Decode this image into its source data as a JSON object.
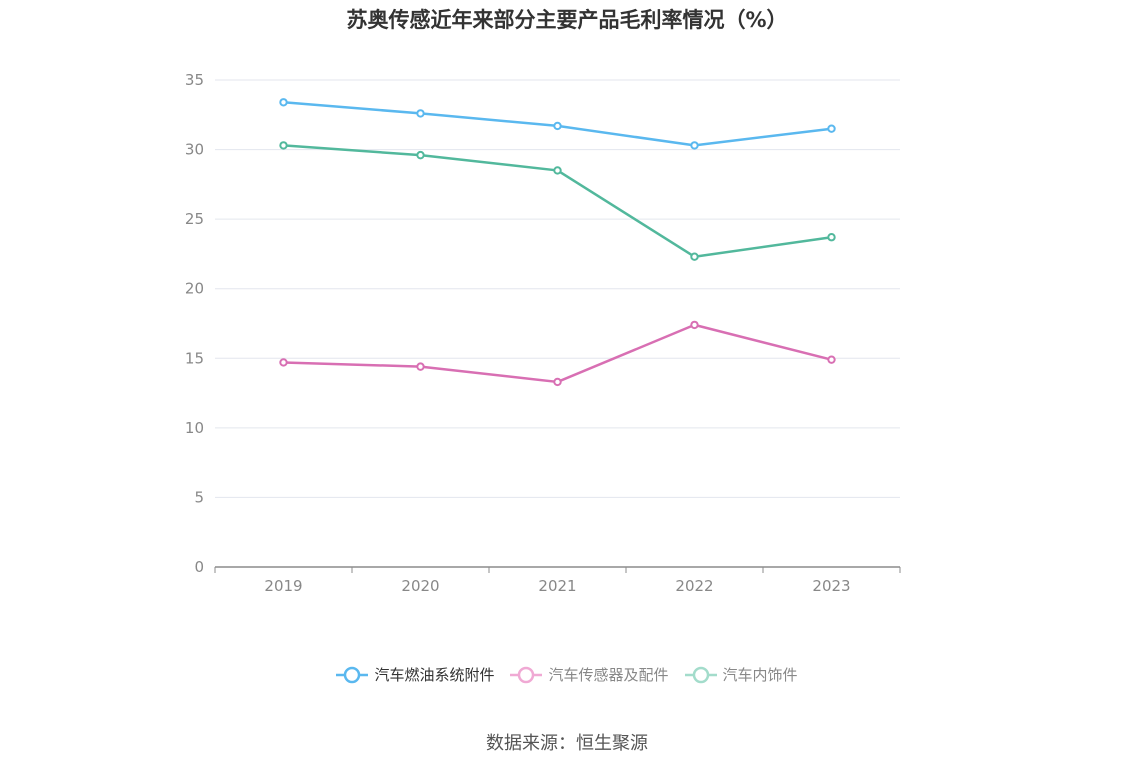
{
  "chart_data": {
    "type": "line",
    "title": "苏奥传感近年来部分主要产品毛利率情况（%）",
    "categories": [
      "2019",
      "2020",
      "2021",
      "2022",
      "2023"
    ],
    "ylim": [
      0,
      35
    ],
    "yticks": [
      0,
      5,
      10,
      15,
      20,
      25,
      30,
      35
    ],
    "grid": true,
    "legend_position": "bottom",
    "series": [
      {
        "name": "汽车燃油系统附件",
        "color": "#5ab8ef",
        "values": [
          33.4,
          32.6,
          31.7,
          30.3,
          31.5
        ]
      },
      {
        "name": "汽车传感器及配件",
        "color": "#d86fb3",
        "values": [
          14.7,
          14.4,
          13.3,
          17.4,
          14.9
        ]
      },
      {
        "name": "汽车内饰件",
        "color": "#52b89c",
        "values": [
          30.3,
          29.6,
          28.5,
          22.3,
          23.7
        ]
      }
    ]
  },
  "legend": {
    "items": [
      {
        "label": "汽车燃油系统附件",
        "color": "#5ab8ef",
        "text_color": "#333333"
      },
      {
        "label": "汽车传感器及配件",
        "color": "#f0a9d4",
        "text_color": "#888888"
      },
      {
        "label": "汽车内饰件",
        "color": "#a3dccb",
        "text_color": "#888888"
      }
    ]
  },
  "source": "数据来源：恒生聚源"
}
